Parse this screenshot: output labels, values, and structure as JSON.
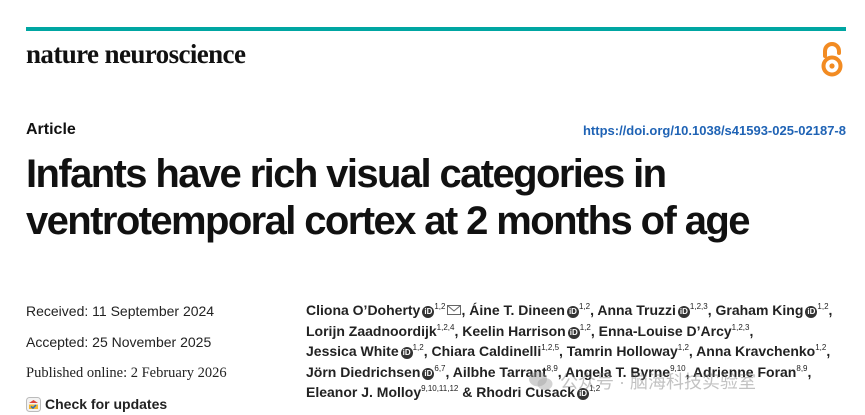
{
  "header": {
    "journal": "nature neuroscience",
    "open_access_icon": "open-access-icon",
    "accent_color": "#00a6a2",
    "oa_color": "#f28b22"
  },
  "article": {
    "type": "Article",
    "doi": "https://doi.org/10.1038/s41593-025-02187-8",
    "title_line1": "Infants have rich visual categories in",
    "title_line2": "ventrotemporal cortex at 2  months of age"
  },
  "history": {
    "received": "Received: 11 September 2024",
    "accepted": "Accepted: 25 November 2025",
    "published": "Published online: 2 February 2026",
    "check_updates": "Check for updates"
  },
  "authors": {
    "l1a_name": "Cliona O’Doherty",
    "l1a_aff": "1,2",
    "l1b_name": "Áine T. Dineen",
    "l1b_aff": "1,2",
    "l1c_name": "Anna Truzzi",
    "l1c_aff": "1,2,3",
    "l1d_name": "Graham King",
    "l1d_aff": "1,2",
    "l2a_name": "Lorijn Zaadnoordijk",
    "l2a_aff": "1,2,4",
    "l2b_name": "Keelin Harrison",
    "l2b_aff": "1,2",
    "l2c_name": "Enna-Louise D’Arcy",
    "l2c_aff": "1,2,3",
    "l3a_name": "Jessica White",
    "l3a_aff": "1,2",
    "l3b_name": "Chiara Caldinelli",
    "l3b_aff": "1,2,5",
    "l3c_name": "Tamrin Holloway",
    "l3c_aff": "1,2",
    "l3d_name": "Anna Kravchenko",
    "l3d_aff": "1,2",
    "l4a_name": "Jörn Diedrichsen",
    "l4a_aff": "6,7",
    "l4b_name": "Ailbhe Tarrant",
    "l4b_aff": "8,9",
    "l4c_name": "Angela T. Byrne",
    "l4c_aff": "9,10",
    "l4d_name": "Adrienne Foran",
    "l4d_aff": "8,9",
    "l5a_name": "Eleanor J. Molloy",
    "l5a_aff": "9,10,11,12",
    "l5b_name": "Rhodri Cusack",
    "l5b_aff": "1,2",
    "sep": ", ",
    "amp": " & ",
    "orcid_glyph": "iD"
  },
  "watermark": {
    "text": "公众号 · 脑海科技实验室"
  }
}
